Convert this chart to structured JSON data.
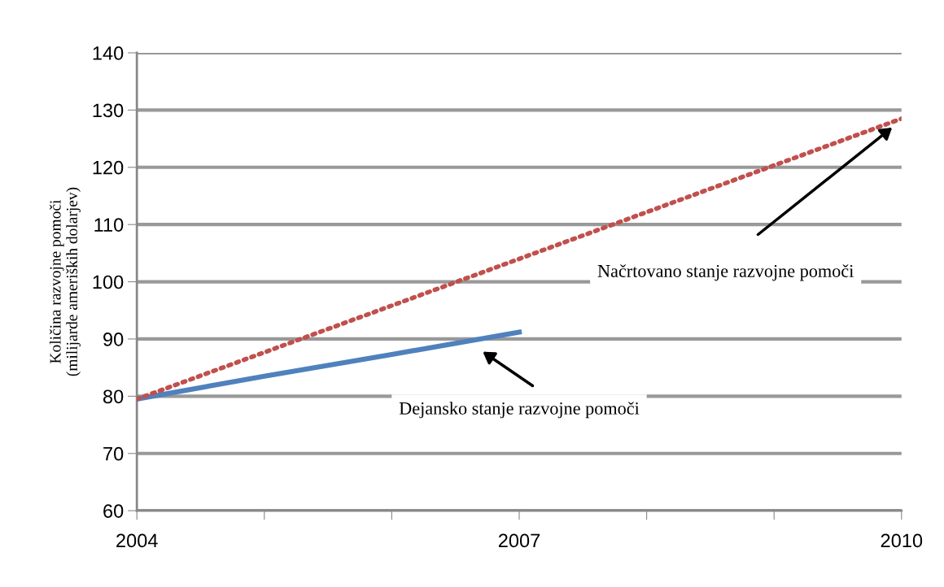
{
  "chart_data": {
    "type": "line",
    "ylabel": "Količina razvojne pomoči\n(milijarde ameriških dolarjev)",
    "series": [
      {
        "color": "#4f81bd",
        "line_style": "solid",
        "x": [
          2004,
          2005,
          2006,
          2007
        ],
        "values": [
          79.5,
          83.5,
          87.3,
          91.2
        ]
      },
      {
        "color": "#c0504d",
        "line_style": "dotted",
        "x": [
          2004,
          2010
        ],
        "values": [
          79.5,
          128.5
        ]
      }
    ],
    "xlim": [
      2004,
      2010
    ],
    "xticks": [
      2004,
      {
        "value": 2005,
        "label": null
      },
      {
        "value": 2006,
        "label": null
      },
      2007,
      {
        "value": 2008,
        "label": null
      },
      {
        "value": 2009,
        "label": null
      },
      2010
    ],
    "ylim": [
      60,
      140
    ],
    "yticks": [
      60,
      70,
      80,
      90,
      100,
      110,
      120,
      130,
      140
    ],
    "grid": "y",
    "annotations": [
      "Načrtovano stanje razvojne pomoči",
      "Dejansko stanje razvojne pomoči"
    ]
  }
}
